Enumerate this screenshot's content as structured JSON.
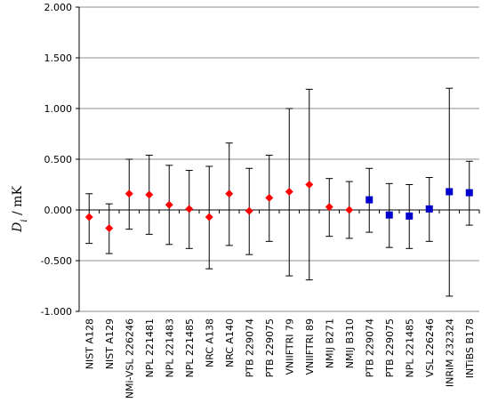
{
  "chart_data": {
    "type": "scatter",
    "title": "",
    "xlabel": "",
    "ylabel_var": "D",
    "ylabel_sub": "i",
    "ylabel_unit": " / mK",
    "ylim": [
      -1.0,
      2.0
    ],
    "yticks": [
      -1.0,
      -0.5,
      0.0,
      0.5,
      1.0,
      1.5,
      2.0
    ],
    "ytick_labels": [
      "-1.000",
      "-0.500",
      "0.000",
      "0.500",
      "1.000",
      "1.500",
      "2.000"
    ],
    "grid": "horizontal",
    "categories": [
      "NIST A128",
      "NIST A129",
      "NMi-VSL 226246",
      "NPL 221481",
      "NPL 221483",
      "NPL 221485",
      "NRC A138",
      "NRC A140",
      "PTB 229074",
      "PTB 229075",
      "VNIIFTRI 79",
      "VNIIFTRI 89",
      "NMIJ B271",
      "NMIJ B310",
      "PTB 229074",
      "PTB 229075",
      "NPL 221485",
      "VSL 226246",
      "INRiM 232324",
      "INTiBS B178"
    ],
    "series": [
      {
        "marker": "diamond",
        "color": "#ff0000",
        "indices": [
          0,
          1,
          2,
          3,
          4,
          5,
          6,
          7,
          8,
          9,
          10,
          11,
          12,
          13
        ],
        "values": [
          -0.07,
          -0.18,
          0.16,
          0.15,
          0.05,
          0.01,
          -0.07,
          0.16,
          -0.01,
          0.12,
          0.18,
          0.25,
          0.03,
          0.0
        ],
        "lower": [
          -0.33,
          -0.43,
          -0.19,
          -0.24,
          -0.34,
          -0.38,
          -0.58,
          -0.35,
          -0.44,
          -0.31,
          -0.65,
          -0.69,
          -0.26,
          -0.28
        ],
        "upper": [
          0.16,
          0.06,
          0.5,
          0.54,
          0.44,
          0.39,
          0.43,
          0.66,
          0.41,
          0.54,
          1.0,
          1.19,
          0.31,
          0.28
        ]
      },
      {
        "marker": "square",
        "color": "#0000cc",
        "indices": [
          14,
          15,
          16,
          17,
          18,
          19
        ],
        "values": [
          0.1,
          -0.05,
          -0.06,
          0.01,
          0.18,
          0.17
        ],
        "lower": [
          -0.22,
          -0.37,
          -0.38,
          -0.31,
          -0.85,
          -0.15
        ],
        "upper": [
          0.41,
          0.26,
          0.25,
          0.32,
          1.2,
          0.48
        ]
      }
    ]
  }
}
